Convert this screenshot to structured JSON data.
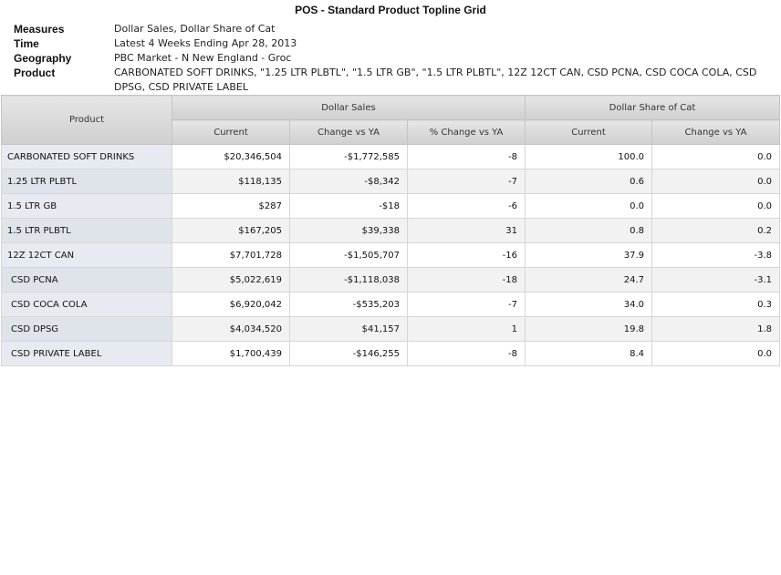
{
  "report": {
    "title": "POS - Standard Product Topline Grid"
  },
  "meta": [
    {
      "label": "Measures",
      "value": "Dollar Sales, Dollar Share of Cat"
    },
    {
      "label": "Time",
      "value": "Latest 4 Weeks Ending Apr 28, 2013"
    },
    {
      "label": "Geography",
      "value": "PBC Market - N New England - Groc"
    },
    {
      "label": "Product",
      "value": "CARBONATED SOFT DRINKS, \"1.25 LTR PLBTL\", \"1.5 LTR GB\", \"1.5 LTR PLBTL\", 12Z 12CT CAN, CSD PCNA, CSD COCA COLA, CSD DPSG, CSD PRIVATE LABEL"
    }
  ],
  "grid": {
    "product_header": "Product",
    "groups": [
      "Dollar Sales",
      "Dollar Share of Cat"
    ],
    "columns": [
      "Current",
      "Change vs YA",
      "% Change vs YA",
      "Current",
      "Change vs YA"
    ],
    "rows": [
      {
        "product": "CARBONATED SOFT DRINKS",
        "values": [
          "$20,346,504",
          "-$1,772,585",
          "-8",
          "100.0",
          "0.0"
        ]
      },
      {
        "product": "1.25 LTR PLBTL",
        "values": [
          "$118,135",
          "-$8,342",
          "-7",
          "0.6",
          "0.0"
        ]
      },
      {
        "product": "1.5 LTR GB",
        "values": [
          "$287",
          "-$18",
          "-6",
          "0.0",
          "0.0"
        ]
      },
      {
        "product": "1.5 LTR PLBTL",
        "values": [
          "$167,205",
          "$39,338",
          "31",
          "0.8",
          "0.2"
        ]
      },
      {
        "product": "12Z 12CT CAN",
        "values": [
          "$7,701,728",
          "-$1,505,707",
          "-16",
          "37.9",
          "-3.8"
        ]
      },
      {
        "product": "CSD PCNA",
        "values": [
          "$5,022,619",
          "-$1,118,038",
          "-18",
          "24.7",
          "-3.1"
        ]
      },
      {
        "product": "CSD COCA COLA",
        "values": [
          "$6,920,042",
          "-$535,203",
          "-7",
          "34.0",
          "0.3"
        ]
      },
      {
        "product": "CSD DPSG",
        "values": [
          "$4,034,520",
          "$41,157",
          "1",
          "19.8",
          "1.8"
        ]
      },
      {
        "product": "CSD PRIVATE LABEL",
        "values": [
          "$1,700,439",
          "-$146,255",
          "-8",
          "8.4",
          "0.0"
        ]
      }
    ]
  }
}
